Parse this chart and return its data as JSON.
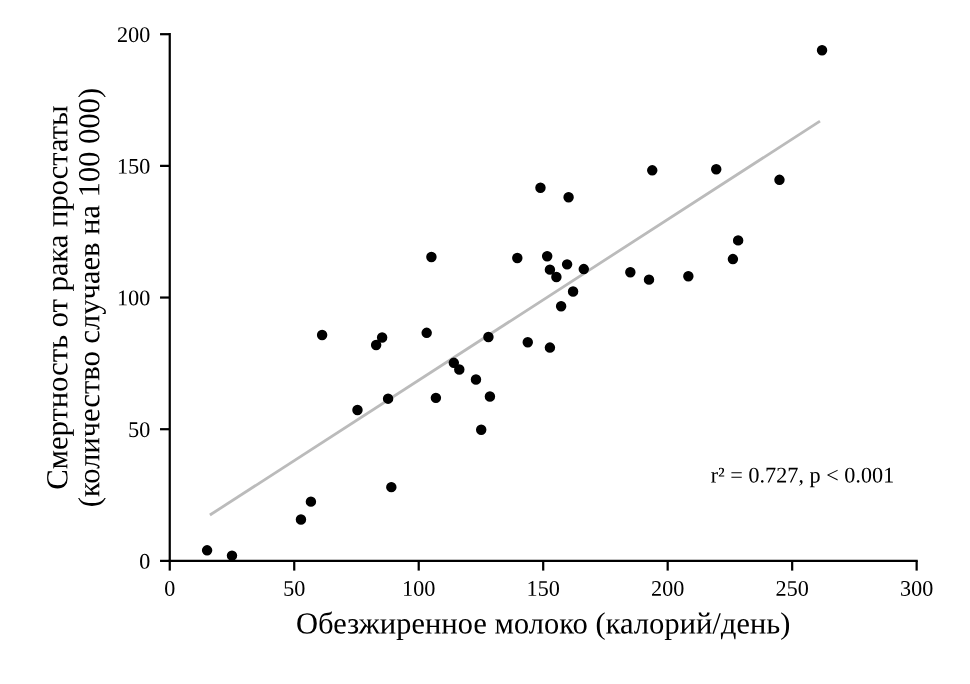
{
  "chart_data": {
    "type": "scatter",
    "xlabel": "Обезжиренное молоко (калорий/день)",
    "ylabel": "Смертность от рака простаты\n(количество случаев на 100 000)",
    "xlim": [
      0,
      300
    ],
    "ylim": [
      0,
      200
    ],
    "xticks": [
      0,
      50,
      100,
      150,
      200,
      250,
      300
    ],
    "yticks": [
      0,
      50,
      100,
      150,
      200
    ],
    "grid": false,
    "marker": "circle",
    "annotations": [
      "r² = 0.727, p < 0.001"
    ],
    "series": [
      {
        "color": "#000000",
        "x": [
          15,
          25,
          52.7,
          56.7,
          61.2,
          75.4,
          82.9,
          85.3,
          87.7,
          89,
          103.2,
          105.1,
          106.9,
          114.1,
          116.3,
          123,
          125.1,
          128,
          128.6,
          139.6,
          143.8,
          148.9,
          151.6,
          152.7,
          155.3,
          152.7,
          157.2,
          159.6,
          160.2,
          162,
          166.3,
          185,
          192.5,
          193.8,
          208.3,
          219.5,
          226.2,
          228.3,
          244.9,
          262
        ],
        "values": [
          4,
          2,
          15.7,
          22.5,
          85.8,
          57.3,
          82,
          84.8,
          61.6,
          28,
          86.6,
          115.4,
          61.9,
          75.2,
          72.7,
          68.9,
          49.8,
          85,
          62.4,
          115,
          83,
          141.7,
          115.7,
          110.6,
          107.8,
          81,
          96.7,
          112.6,
          138.1,
          102.3,
          110.8,
          109.6,
          106.8,
          148.3,
          108.1,
          148.7,
          114.6,
          121.7,
          144.7,
          193.9
        ]
      },
      {
        "type": "line",
        "color": "#bbbbbb",
        "marker": "none",
        "x": [
          16.6,
          260.7
        ],
        "values": [
          17.7,
          166.7
        ]
      }
    ]
  }
}
